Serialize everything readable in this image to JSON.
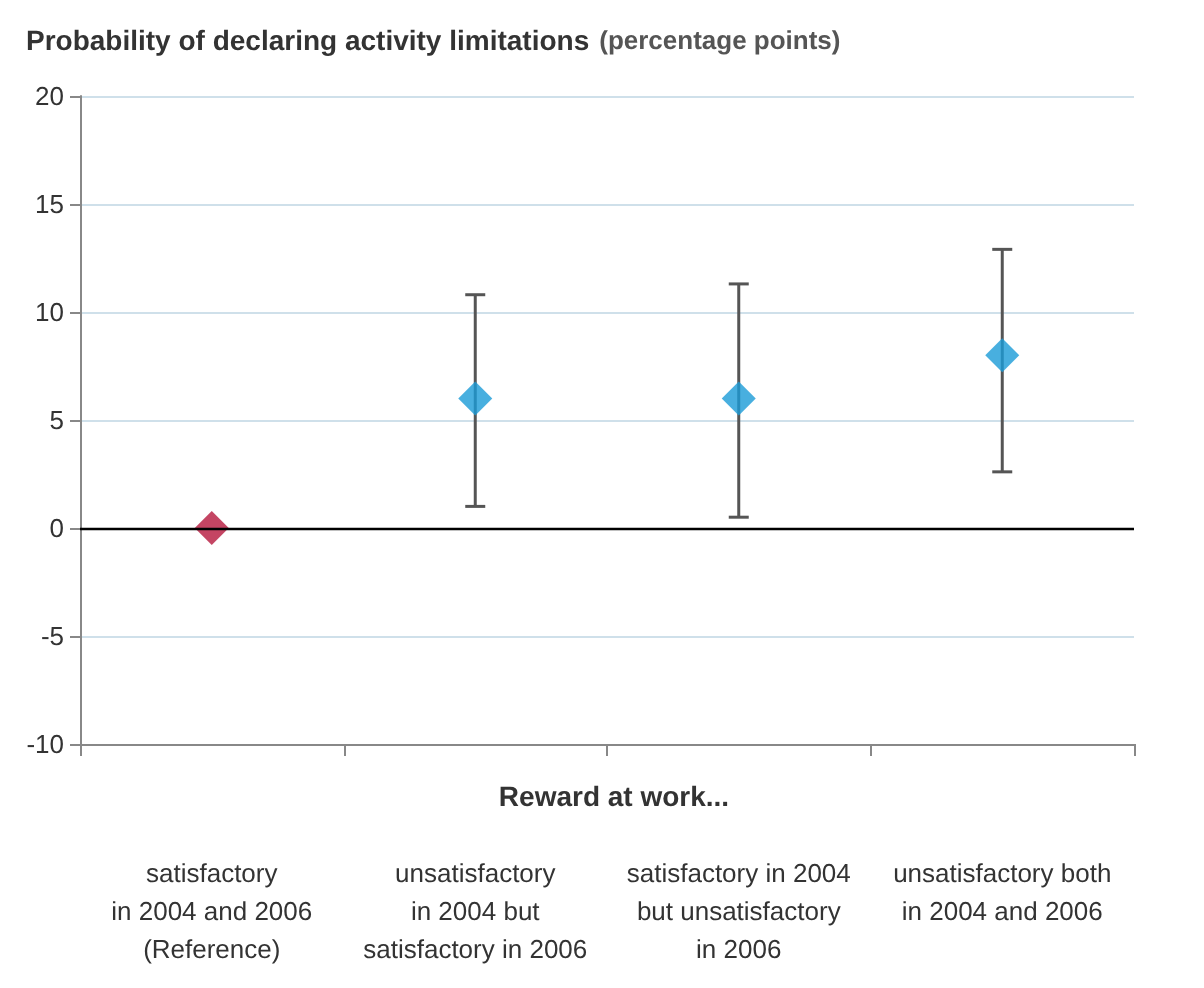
{
  "chart_data": {
    "type": "scatter",
    "title": "Probability of declaring activity limitations",
    "subtitle": "(percentage points)",
    "xlabel": "Reward at work...",
    "categories": [
      "satisfactory\nin 2004 and 2006\n(Reference)",
      "unsatisfactory\nin 2004 but\nsatisfactory in 2006",
      "satisfactory in 2004\nbut unsatisfactory\nin 2006",
      "unsatisfactory both\nin 2004 and 2006"
    ],
    "values": [
      0,
      6,
      6,
      8
    ],
    "colors": [
      "#b5173c",
      "#1a9bd7",
      "#1a9bd7",
      "#1a9bd7"
    ],
    "errors": [
      null,
      [
        1,
        10.8
      ],
      [
        0.5,
        11.3
      ],
      [
        2.6,
        12.9
      ]
    ],
    "ylim": [
      -10,
      20
    ],
    "yticks": [
      -10,
      -5,
      0,
      5,
      10,
      15,
      20
    ],
    "ref_lines": [
      {
        "axis": "y",
        "value": 0,
        "color": "#000000"
      }
    ],
    "grid": "y",
    "marker": "diamond"
  }
}
